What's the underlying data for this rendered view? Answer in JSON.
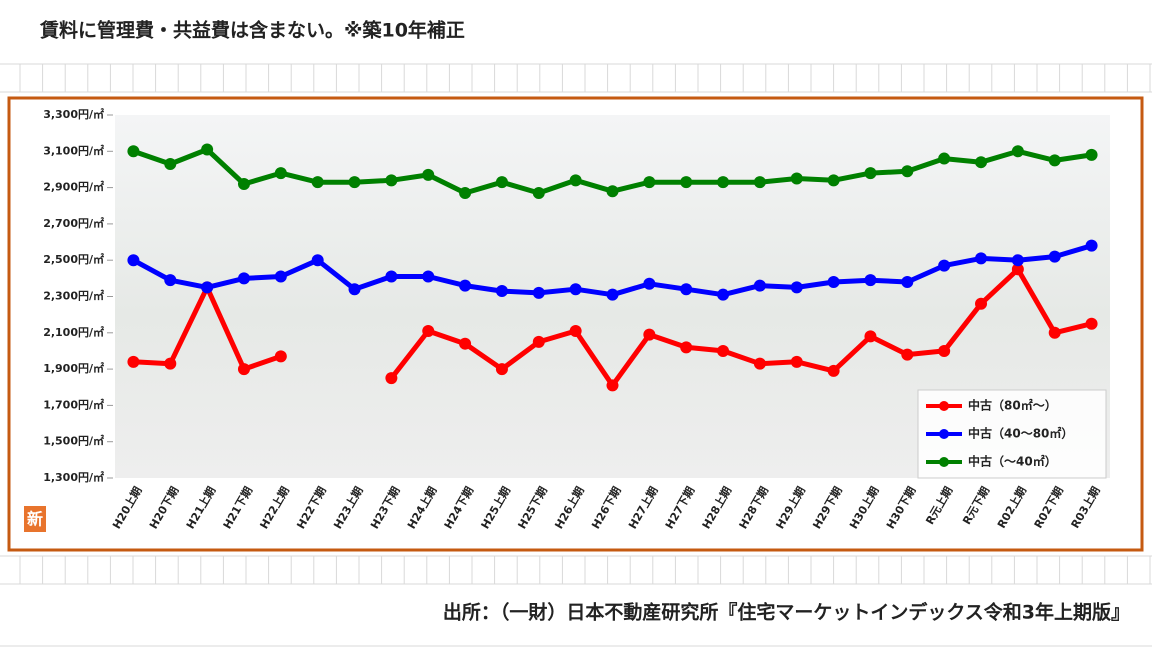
{
  "heading": "賃料に管理費・共益費は含まない。※築10年補正",
  "source": "出所：（一財）日本不動産研究所『住宅マーケットインデックス令和3年上期版』",
  "badge": "新",
  "chart_data": {
    "type": "line",
    "categories": [
      "H20上期",
      "H20下期",
      "H21上期",
      "H21下期",
      "H22上期",
      "H22下期",
      "H23上期",
      "H23下期",
      "H24上期",
      "H24下期",
      "H25上期",
      "H25下期",
      "H26上期",
      "H26下期",
      "H27上期",
      "H27下期",
      "H28上期",
      "H28下期",
      "H29上期",
      "H29下期",
      "H30上期",
      "H30下期",
      "R元上期",
      "R元下期",
      "R02上期",
      "R02下期",
      "R03上期"
    ],
    "series": [
      {
        "name": "中古（80㎡～）",
        "color": "#ff0000",
        "values": [
          1940,
          1930,
          2350,
          1900,
          1970,
          null,
          null,
          1850,
          2110,
          2040,
          1900,
          2050,
          2110,
          1810,
          2090,
          2020,
          2000,
          1930,
          1940,
          1890,
          2080,
          1980,
          2000,
          2260,
          2450,
          2100,
          2150
        ]
      },
      {
        "name": "中古（40～80㎡）",
        "color": "#0000ff",
        "values": [
          2500,
          2390,
          2350,
          2400,
          2410,
          2500,
          2340,
          2410,
          2410,
          2360,
          2330,
          2320,
          2340,
          2310,
          2370,
          2340,
          2310,
          2360,
          2350,
          2380,
          2390,
          2380,
          2470,
          2510,
          2500,
          2520,
          2580
        ]
      },
      {
        "name": "中古（～40㎡）",
        "color": "#008000",
        "values": [
          3100,
          3030,
          3110,
          2920,
          2980,
          2930,
          2930,
          2940,
          2970,
          2870,
          2930,
          2870,
          2940,
          2880,
          2930,
          2930,
          2930,
          2930,
          2950,
          2940,
          2980,
          2990,
          3060,
          3040,
          3100,
          3050,
          3080
        ]
      }
    ],
    "ylim": [
      1300,
      3300
    ],
    "yticks": [
      {
        "value": 1300,
        "label": "1,300円/㎡"
      },
      {
        "value": 1500,
        "label": "1,500円/㎡"
      },
      {
        "value": 1700,
        "label": "1,700円/㎡"
      },
      {
        "value": 1900,
        "label": "1,900円/㎡"
      },
      {
        "value": 2100,
        "label": "2,100円/㎡"
      },
      {
        "value": 2300,
        "label": "2,300円/㎡"
      },
      {
        "value": 2500,
        "label": "2,500円/㎡"
      },
      {
        "value": 2700,
        "label": "2,700円/㎡"
      },
      {
        "value": 2900,
        "label": "2,900円/㎡"
      },
      {
        "value": 3100,
        "label": "3,100円/㎡"
      },
      {
        "value": 3300,
        "label": "3,300円/㎡"
      }
    ],
    "legend": "lower right"
  }
}
